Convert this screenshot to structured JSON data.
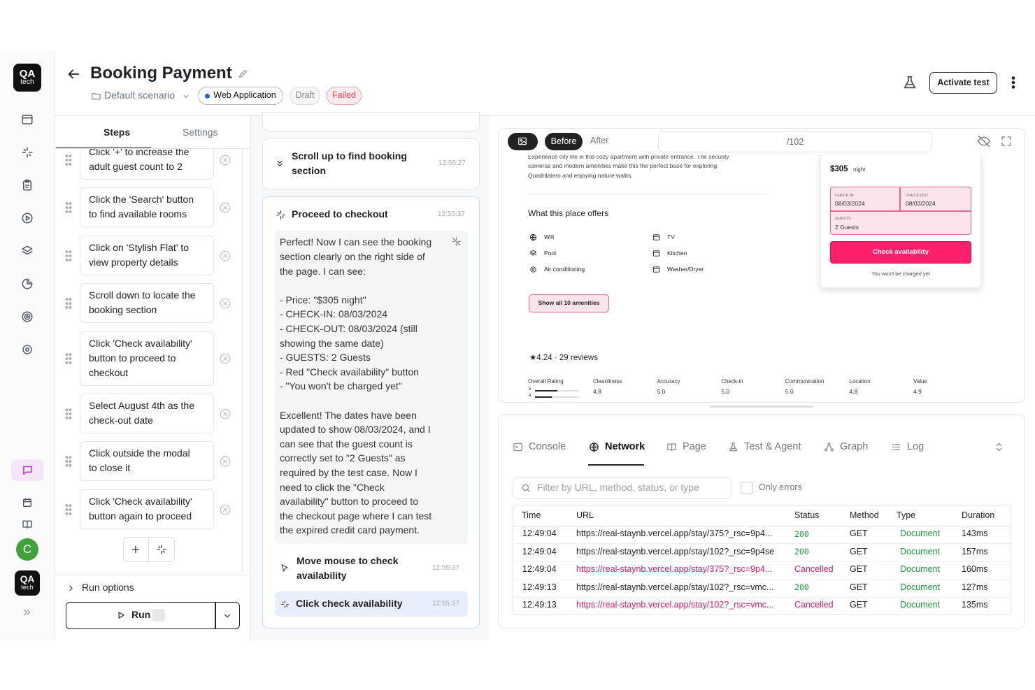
{
  "sidebar": {
    "logo": {
      "top": "QA",
      "bottom": "tech"
    },
    "avatar": "C",
    "footer_logo": {
      "top": "QA",
      "bottom": "tech"
    }
  },
  "header": {
    "title": "Booking Payment",
    "scenario": "Default scenario",
    "tags": [
      "Web Application",
      "Draft",
      "Failed"
    ],
    "activate_button": "Activate test"
  },
  "steps_panel": {
    "tabs": [
      "Steps",
      "Settings"
    ],
    "steps": [
      [
        "Click '+' to increase the",
        "adult guest count to 2"
      ],
      [
        "Click the 'Search' button",
        "to find available rooms"
      ],
      [
        "Click on 'Stylish Flat' to",
        "view property details"
      ],
      [
        "Scroll down to locate the",
        "booking section"
      ],
      [
        "Click 'Check availability'",
        "button to proceed to",
        "checkout"
      ],
      [
        "Select August 4th as the",
        "check-out date"
      ],
      [
        "Click outside the modal",
        "to close it"
      ],
      [
        "Click 'Check availability'",
        "button again to proceed"
      ]
    ],
    "run_options": "Run options",
    "run_button": "Run"
  },
  "chat": {
    "items": [
      {
        "title": [
          "Scroll up to find booking",
          "section"
        ],
        "time": "12:55:27"
      },
      {
        "title": [
          "Proceed to checkout"
        ],
        "time": "12:55:37"
      },
      {
        "title": [
          "Move mouse to check",
          "availability"
        ],
        "time": "12:55:37"
      },
      {
        "title": [
          "Click check availability"
        ],
        "time": "12:55:37"
      }
    ],
    "message": [
      [
        "Perfect! Now I can see the booking",
        "section clearly on the right side of",
        "the page. I can see:"
      ],
      [
        "- Price: \"$305 night\"",
        "- CHECK-IN: 08/03/2024",
        "- CHECK-OUT: 08/03/2024 (still",
        "showing the same date)",
        "- GUESTS: 2 Guests",
        "- Red \"Check availability\" button",
        "- \"You won't be charged yet\""
      ],
      [
        "Excellent! The dates have been",
        "updated to show 08/03/2024, and I",
        "can see that the guest count is",
        "correctly set to \"2 Guests\" as",
        "required by the test case. Now I",
        "need to click the \"Check",
        "availability\" button to proceed to",
        "the checkout page where I can test",
        "the expired credit card payment."
      ]
    ]
  },
  "preview": {
    "modes": [
      "Before",
      "After"
    ],
    "url": "/102",
    "description": [
      "Experience city life in this cozy apartment with private entrance. The security",
      "cameras and modern amenities make this the perfect base for exploring",
      "Quadrilatero and enjoying nature walks."
    ],
    "offers_title": "What this place offers",
    "amenities": [
      "Wifi",
      "TV",
      "Pool",
      "Kitchen",
      "Air conditioning",
      "Washer/Dryer"
    ],
    "show_all": "Show all 10 amenities",
    "reviews": "★4.24 · 29 reviews",
    "overall": {
      "label": "Overall Rating",
      "bars": [
        "5",
        "4"
      ]
    },
    "ratings": [
      {
        "label": "Cleanliness",
        "value": "4.8"
      },
      {
        "label": "Accuracy",
        "value": "5.0"
      },
      {
        "label": "Check-in",
        "value": "5.0"
      },
      {
        "label": "Communication",
        "value": "5.0"
      },
      {
        "label": "Location",
        "value": "4.8"
      },
      {
        "label": "Value",
        "value": "4.9"
      }
    ],
    "booking": {
      "price": "$305",
      "per": "night",
      "checkin_label": "CHECK-IN",
      "checkin": "08/03/2024",
      "checkout_label": "CHECK-OUT",
      "checkout": "08/03/2024",
      "guests_label": "GUESTS",
      "guests": "2 Guests",
      "button": "Check availability",
      "note": "You won't be charged yet"
    }
  },
  "devtools": {
    "tabs": [
      "Console",
      "Network",
      "Page",
      "Test & Agent",
      "Graph",
      "Log"
    ],
    "filter_placeholder": "Filter by URL, method, status, or type",
    "only_errors": "Only errors",
    "columns": [
      "Time",
      "URL",
      "Status",
      "Method",
      "Type",
      "Duration"
    ],
    "rows": [
      [
        "12:49:04",
        "https://real-staynb.vercel.app/stay/375?_rsc=9p4...",
        "200",
        "GET",
        "Document",
        "143ms"
      ],
      [
        "12:49:04",
        "https://real-staynb.vercel.app/stay/102?_rsc=9p4se",
        "200",
        "GET",
        "Document",
        "157ms"
      ],
      [
        "12:49:04",
        "https://real-staynb.vercel.app/stay/375?_rsc=9p4...",
        "Cancelled",
        "GET",
        "Document",
        "160ms"
      ],
      [
        "12:49:13",
        "https://real-staynb.vercel.app/stay/102?_rsc=vmc...",
        "200",
        "GET",
        "Document",
        "127ms"
      ],
      [
        "12:49:13",
        "https://real-staynb.vercel.app/stay/102?_rsc=vmc...",
        "Cancelled",
        "GET",
        "Document",
        "135ms"
      ]
    ]
  }
}
